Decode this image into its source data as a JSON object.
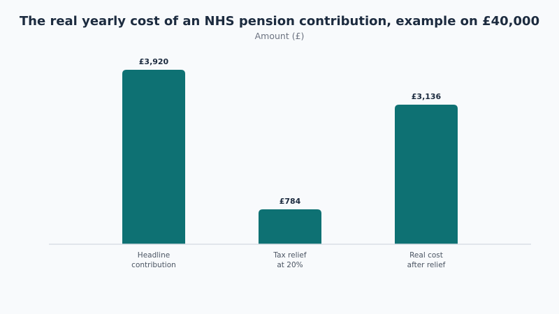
{
  "chart_data": {
    "type": "bar",
    "title": "The real yearly cost of an NHS pension contribution, example on £40,000",
    "subtitle": "Amount (£)",
    "categories": [
      [
        "Headline",
        "contribution"
      ],
      [
        "Tax relief",
        "at 20%"
      ],
      [
        "Real cost",
        "after relief"
      ]
    ],
    "values": [
      3920,
      784,
      3136
    ],
    "value_labels": [
      "£3,920",
      "£784",
      "£3,136"
    ],
    "ylim": [
      0,
      3920
    ],
    "grid": false,
    "legend": "none"
  },
  "colors": {
    "background": "#f8fafc",
    "bar": "#0e7173",
    "title": "#1c2b3f",
    "subtitle": "#6b7280",
    "value_label": "#1c2b3f",
    "category_label": "#4b5563",
    "baseline": "#d9dee5"
  }
}
